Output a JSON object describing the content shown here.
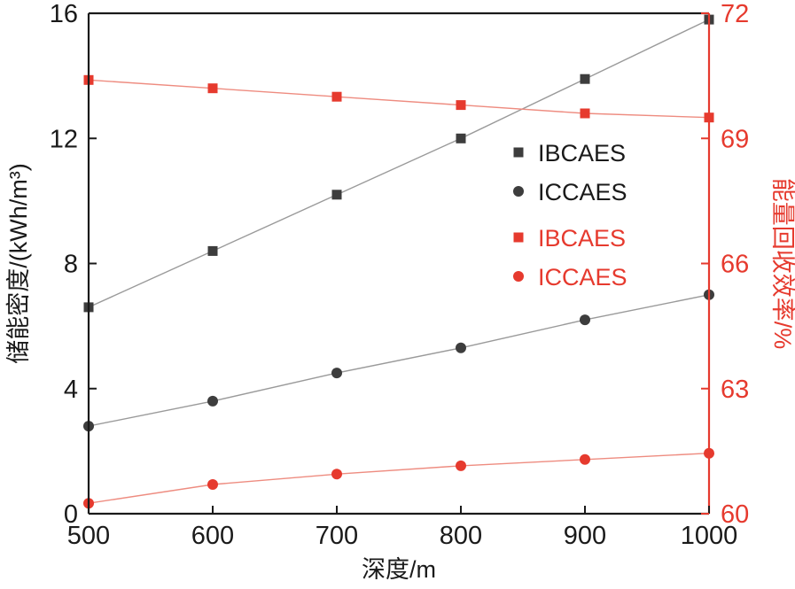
{
  "chart_data": {
    "type": "line",
    "x": [
      500,
      600,
      700,
      800,
      900,
      1000
    ],
    "xlabel": "深度/m",
    "xlim": [
      500,
      1000
    ],
    "xticks": [
      500,
      600,
      700,
      800,
      900,
      1000
    ],
    "ylabel_left": "储能密度/(kWh/m³)",
    "ylim_left": [
      0,
      16
    ],
    "yticks_left": [
      0,
      4,
      8,
      12,
      16
    ],
    "ylabel_right": "能量回收效率/%",
    "ylim_right": [
      60,
      72
    ],
    "yticks_right": [
      60,
      63,
      66,
      69,
      72
    ],
    "left_axis_color": "#1a1a1a",
    "right_axis_color": "#e63a2e",
    "grid": "off",
    "legend_position": "inside-center-right",
    "series": [
      {
        "name": "IBCAES",
        "axis": "left",
        "marker": "square",
        "marker_color": "#3d3d3d",
        "line_color": "#9a9a9a",
        "label_color": "#1a1a1a",
        "values": [
          6.6,
          8.4,
          10.2,
          12.0,
          13.9,
          15.8
        ]
      },
      {
        "name": "ICCAES",
        "axis": "left",
        "marker": "circle",
        "marker_color": "#3d3d3d",
        "line_color": "#9a9a9a",
        "label_color": "#1a1a1a",
        "values": [
          2.8,
          3.6,
          4.5,
          5.3,
          6.2,
          7.0
        ]
      },
      {
        "name": "IBCAES",
        "axis": "right",
        "marker": "square",
        "marker_color": "#e63a2e",
        "line_color": "#ee8c80",
        "label_color": "#e63a2e",
        "values": [
          70.4,
          70.2,
          70.0,
          69.8,
          69.6,
          69.5
        ]
      },
      {
        "name": "ICCAES",
        "axis": "right",
        "marker": "circle",
        "marker_color": "#e63a2e",
        "line_color": "#ee8c80",
        "label_color": "#e63a2e",
        "values": [
          60.25,
          60.7,
          60.95,
          61.15,
          61.3,
          61.45
        ]
      }
    ]
  }
}
